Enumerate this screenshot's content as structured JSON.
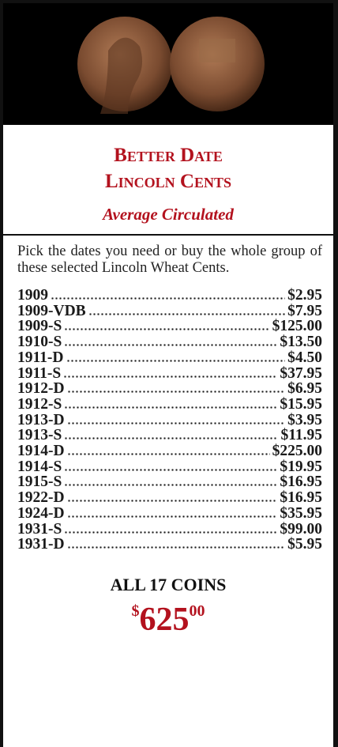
{
  "title_lines": [
    "Better Date",
    "Lincoln Cents"
  ],
  "subtitle": "Average Circulated",
  "description": "Pick the dates you need or buy the whole group of these selected Lincoln Wheat Cents.",
  "items": [
    {
      "date": "1909",
      "price": "$2.95"
    },
    {
      "date": "1909-VDB",
      "price": "$7.95"
    },
    {
      "date": "1909-S",
      "price": "$125.00"
    },
    {
      "date": "1910-S",
      "price": "$13.50"
    },
    {
      "date": "1911-D",
      "price": "$4.50"
    },
    {
      "date": "1911-S",
      "price": "$37.95"
    },
    {
      "date": "1912-D",
      "price": "$6.95"
    },
    {
      "date": "1912-S",
      "price": "$15.95"
    },
    {
      "date": "1913-D",
      "price": "$3.95"
    },
    {
      "date": "1913-S",
      "price": "$11.95"
    },
    {
      "date": "1914-D",
      "price": "$225.00"
    },
    {
      "date": "1914-S",
      "price": "$19.95"
    },
    {
      "date": "1915-S",
      "price": "$16.95"
    },
    {
      "date": "1922-D",
      "price": "$16.95"
    },
    {
      "date": "1924-D",
      "price": "$35.95"
    },
    {
      "date": "1931-S",
      "price": "$99.00"
    },
    {
      "date": "1931-D",
      "price": "$5.95"
    }
  ],
  "offer": {
    "label": "ALL 17 COINS",
    "currency": "$",
    "dollars": "625",
    "cents": "00"
  }
}
